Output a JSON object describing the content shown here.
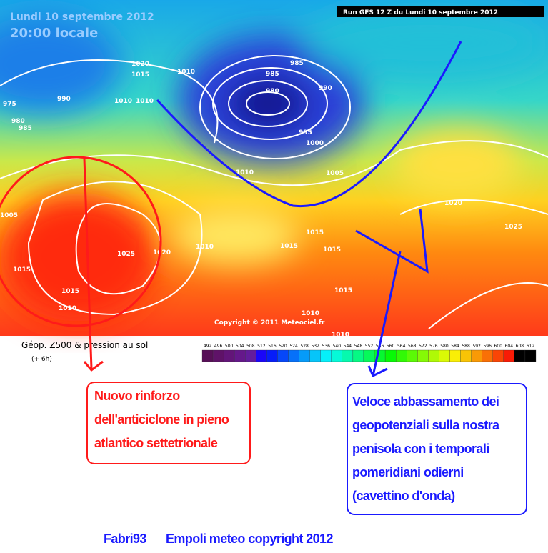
{
  "header": {
    "date": "Lundi 10 septembre 2012",
    "time": "20:00 locale",
    "run": "Run GFS 12 Z du Lundi 10 septembre 2012"
  },
  "copyright": "Copyright © 2011 Meteociel.fr",
  "isobar_labels": [
    1020,
    1015,
    1010,
    985,
    985,
    980,
    990,
    995,
    1000,
    1010,
    1005,
    975,
    980,
    985,
    990,
    1010,
    1010,
    1005,
    1025,
    1020,
    1010,
    1015,
    1015,
    1015,
    1015,
    1020,
    1025,
    1015,
    1010,
    1015,
    1010,
    1010
  ],
  "legend": {
    "title": "Géop. Z500 & pression au sol",
    "subtitle": "(+ 6h)",
    "ticks": [
      492,
      496,
      500,
      504,
      508,
      512,
      516,
      520,
      524,
      528,
      532,
      536,
      540,
      544,
      548,
      552,
      556,
      560,
      564,
      568,
      572,
      576,
      580,
      584,
      588,
      592,
      596,
      600,
      604,
      608,
      612
    ]
  },
  "annotations": {
    "left": [
      "Nuovo rinforzo",
      "dell'anticiclone in pieno",
      "atlantico settetrionale"
    ],
    "right": [
      "Veloce abbassamento dei",
      "geopotenziali sulla nostra",
      "penisola con i temporali",
      "pomeridiani odierni",
      "(cavettino d'onda)"
    ]
  },
  "footer": {
    "author": "Fabri93",
    "text": "Empoli meteo copyright 2012"
  }
}
